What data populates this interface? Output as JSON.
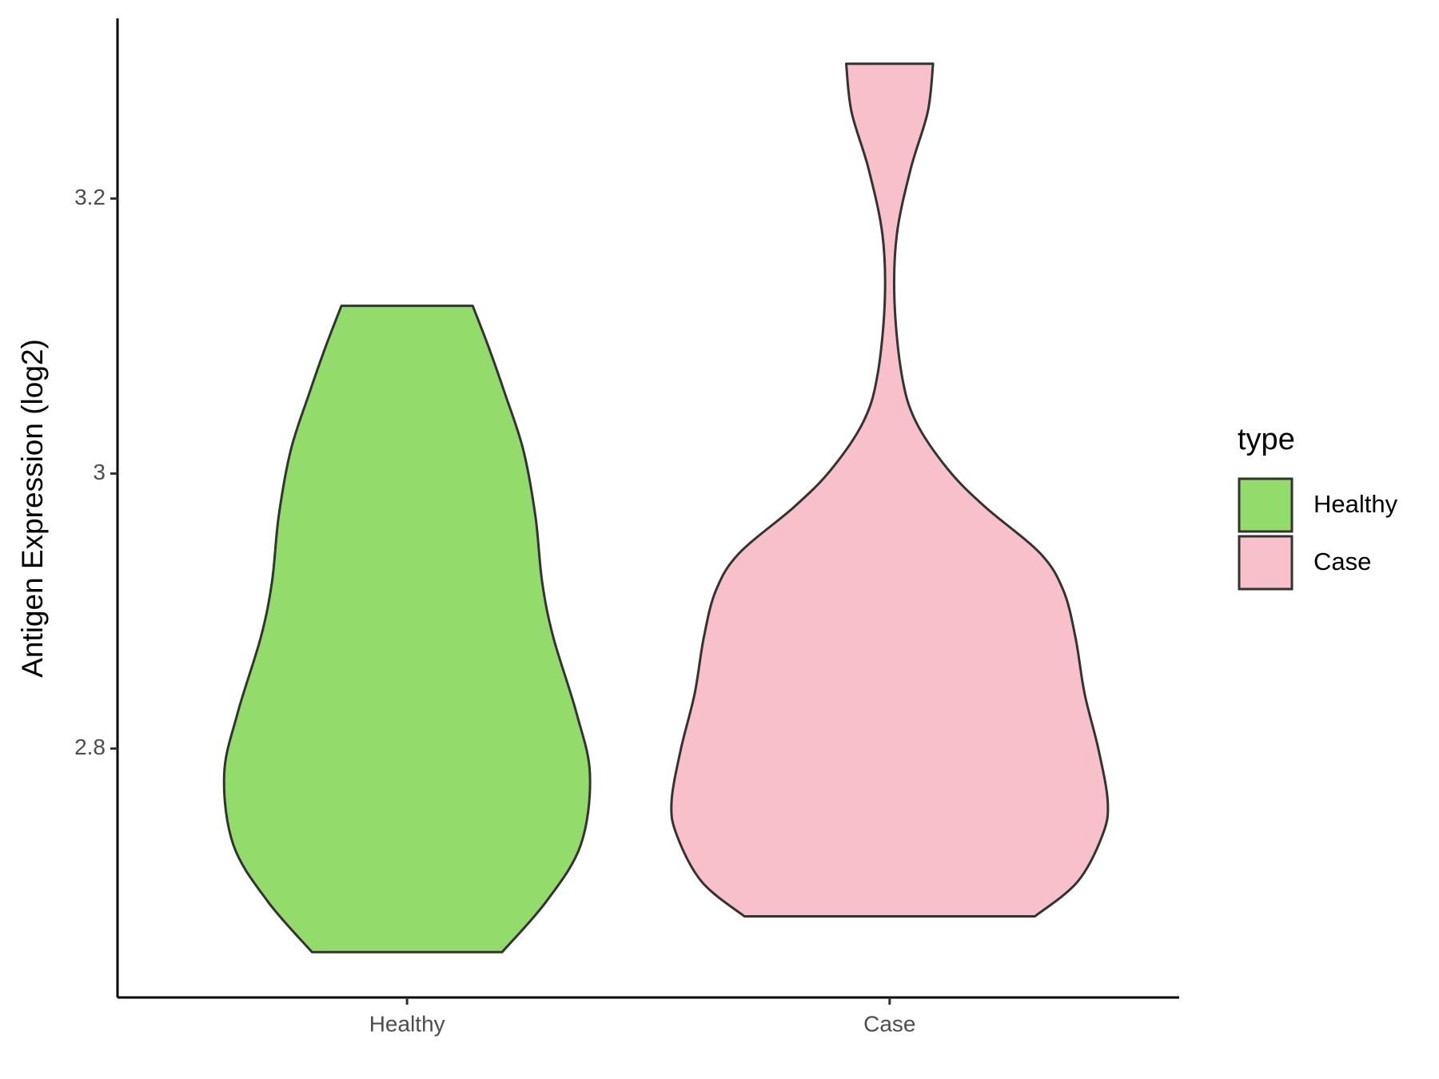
{
  "chart_data": {
    "type": "violin",
    "y_label": "Antigen Expression (log2)",
    "categories": [
      "Healthy",
      "Case"
    ],
    "ylim": [
      2.619,
      3.331
    ],
    "yticks": [
      2.8,
      3.0,
      3.2
    ],
    "legend_title": "type",
    "legend_position": "right",
    "series": [
      {
        "name": "Healthy",
        "color": "#93dc6b",
        "profile_y": [
          2.652,
          2.689,
          2.73,
          2.781,
          2.826,
          2.881,
          2.921,
          2.969,
          3.017,
          3.058,
          3.092,
          3.122
        ],
        "profile_halfwidth": [
          0.197,
          0.289,
          0.36,
          0.379,
          0.351,
          0.303,
          0.28,
          0.266,
          0.241,
          0.203,
          0.169,
          0.136
        ]
      },
      {
        "name": "Case",
        "color": "#f7c0cb",
        "profile_y": [
          2.678,
          2.703,
          2.737,
          2.761,
          2.799,
          2.84,
          2.881,
          2.915,
          2.942,
          2.976,
          3.003,
          3.038,
          3.072,
          3.126,
          3.174,
          3.222,
          3.263,
          3.298
        ],
        "profile_halfwidth": [
          0.301,
          0.389,
          0.441,
          0.452,
          0.433,
          0.404,
          0.385,
          0.36,
          0.312,
          0.197,
          0.121,
          0.054,
          0.025,
          0.01,
          0.015,
          0.044,
          0.079,
          0.09
        ]
      }
    ]
  }
}
